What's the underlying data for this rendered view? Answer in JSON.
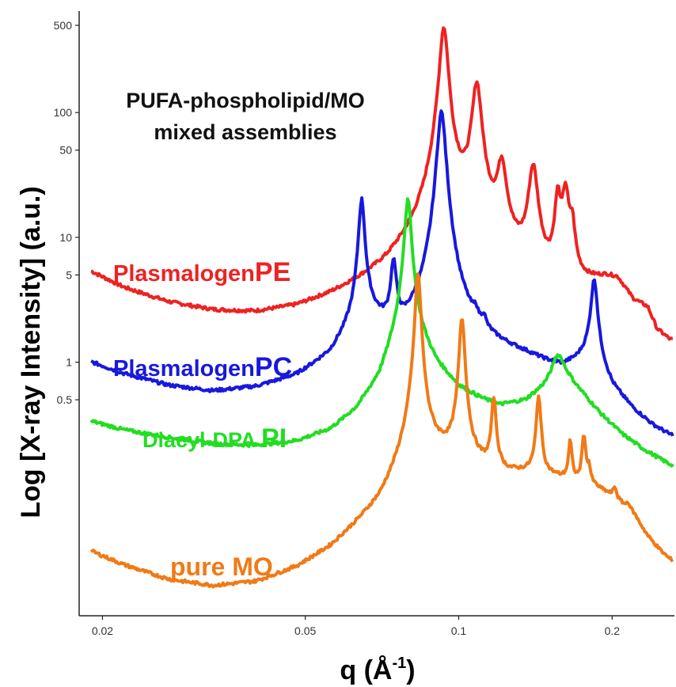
{
  "chart_data": {
    "type": "line",
    "title": "",
    "annotation": [
      "PUFA-phospholipid/MO",
      "mixed assemblies"
    ],
    "xlabel": "q (Å-1)",
    "xlabel_parts": {
      "main": "q (Å",
      "sup": "-1",
      "close": ")"
    },
    "ylabel": "Log [X-ray Intensity] (a.u.)",
    "x_scale": "log",
    "y_scale": "log",
    "xlim": [
      0.018,
      0.265
    ],
    "ylim": [
      0.0093,
      650
    ],
    "x_ticks": [
      {
        "value": 0.02,
        "label": "0.02"
      },
      {
        "value": 0.05,
        "label": "0.05"
      },
      {
        "value": 0.1,
        "label": "0.1"
      },
      {
        "value": 0.2,
        "label": "0.2"
      }
    ],
    "y_ticks": [
      {
        "value": 500,
        "label": "500"
      },
      {
        "value": 100,
        "label": "100"
      },
      {
        "value": 50,
        "label": "50"
      },
      {
        "value": 10,
        "label": "10"
      },
      {
        "value": 5,
        "label": "5"
      },
      {
        "value": 1,
        "label": "1"
      },
      {
        "value": 0.5,
        "label": "0.5"
      }
    ],
    "grid": false,
    "series": [
      {
        "key": "pe",
        "label_normal": "Plasmalogen",
        "label_bold": "PE",
        "color": "#ee2222",
        "baseline": [
          [
            0.019,
            5.0
          ],
          [
            0.022,
            3.6
          ],
          [
            0.027,
            2.6
          ],
          [
            0.033,
            2.1
          ],
          [
            0.04,
            1.9
          ],
          [
            0.048,
            2.0
          ],
          [
            0.056,
            2.4
          ],
          [
            0.064,
            3.0
          ],
          [
            0.072,
            3.8
          ],
          [
            0.08,
            5.5
          ],
          [
            0.086,
            8.0
          ],
          [
            0.09,
            12
          ],
          [
            0.095,
            13
          ],
          [
            0.1,
            15
          ],
          [
            0.105,
            13
          ],
          [
            0.113,
            10
          ],
          [
            0.12,
            9
          ],
          [
            0.125,
            7
          ],
          [
            0.135,
            5
          ],
          [
            0.15,
            3.8
          ],
          [
            0.16,
            3.6
          ],
          [
            0.175,
            4.0
          ],
          [
            0.195,
            4.6
          ],
          [
            0.205,
            4.5
          ],
          [
            0.22,
            3.0
          ],
          [
            0.235,
            2.6
          ],
          [
            0.245,
            1.7
          ],
          [
            0.26,
            1.4
          ]
        ],
        "peaks": [
          {
            "q": 0.0935,
            "h": 470,
            "w": 0.018
          },
          {
            "q": 0.1085,
            "h": 160,
            "w": 0.02
          },
          {
            "q": 0.1215,
            "h": 30,
            "w": 0.02
          },
          {
            "q": 0.14,
            "h": 32,
            "w": 0.02
          },
          {
            "q": 0.1565,
            "h": 17,
            "w": 0.013
          },
          {
            "q": 0.162,
            "h": 20,
            "w": 0.015
          },
          {
            "q": 0.167,
            "h": 8,
            "w": 0.012
          }
        ]
      },
      {
        "key": "pc",
        "label_normal": "Plasmalogen",
        "label_bold": "PC",
        "color": "#1818dd",
        "baseline": [
          [
            0.019,
            0.95
          ],
          [
            0.022,
            0.75
          ],
          [
            0.027,
            0.58
          ],
          [
            0.033,
            0.5
          ],
          [
            0.04,
            0.52
          ],
          [
            0.048,
            0.62
          ],
          [
            0.056,
            0.9
          ],
          [
            0.063,
            1.8
          ],
          [
            0.067,
            2.1
          ],
          [
            0.072,
            1.6
          ],
          [
            0.078,
            1.25
          ],
          [
            0.083,
            1.35
          ],
          [
            0.089,
            1.45
          ],
          [
            0.095,
            1.9
          ],
          [
            0.1,
            1.6
          ],
          [
            0.11,
            1.4
          ],
          [
            0.12,
            1.25
          ],
          [
            0.135,
            1.1
          ],
          [
            0.15,
            0.95
          ],
          [
            0.16,
            0.9
          ],
          [
            0.17,
            1.0
          ],
          [
            0.182,
            1.2
          ],
          [
            0.19,
            0.9
          ],
          [
            0.2,
            0.6
          ],
          [
            0.22,
            0.4
          ],
          [
            0.24,
            0.3
          ],
          [
            0.26,
            0.25
          ]
        ],
        "peaks": [
          {
            "q": 0.0645,
            "h": 18,
            "w": 0.013
          },
          {
            "q": 0.0745,
            "h": 4.5,
            "w": 0.012
          },
          {
            "q": 0.0925,
            "h": 100,
            "w": 0.018
          },
          {
            "q": 0.108,
            "h": 0.4,
            "w": 0.01
          },
          {
            "q": 0.112,
            "h": 0.4,
            "w": 0.01
          },
          {
            "q": 0.1845,
            "h": 3.5,
            "w": 0.014
          }
        ]
      },
      {
        "key": "pi",
        "label_normal": "Diacyl-DPA ",
        "label_bold": "PI",
        "color": "#22dd22",
        "baseline": [
          [
            0.019,
            0.33
          ],
          [
            0.022,
            0.28
          ],
          [
            0.027,
            0.24
          ],
          [
            0.033,
            0.21
          ],
          [
            0.04,
            0.2
          ],
          [
            0.048,
            0.21
          ],
          [
            0.056,
            0.25
          ],
          [
            0.063,
            0.35
          ],
          [
            0.07,
            0.6
          ],
          [
            0.075,
            1.2
          ],
          [
            0.079,
            2.0
          ],
          [
            0.083,
            1.5
          ],
          [
            0.09,
            0.9
          ],
          [
            0.1,
            0.6
          ],
          [
            0.11,
            0.5
          ],
          [
            0.12,
            0.44
          ],
          [
            0.135,
            0.48
          ],
          [
            0.148,
            0.62
          ],
          [
            0.155,
            0.75
          ],
          [
            0.165,
            0.7
          ],
          [
            0.175,
            0.55
          ],
          [
            0.19,
            0.38
          ],
          [
            0.21,
            0.26
          ],
          [
            0.23,
            0.2
          ],
          [
            0.26,
            0.15
          ]
        ],
        "peaks": [
          {
            "q": 0.0795,
            "h": 18,
            "w": 0.015
          },
          {
            "q": 0.157,
            "h": 0.4,
            "w": 0.03
          }
        ]
      },
      {
        "key": "mo",
        "label_normal": "pure MO",
        "label_bold": "",
        "color": "#f07a16",
        "baseline": [
          [
            0.019,
            0.029
          ],
          [
            0.022,
            0.022
          ],
          [
            0.027,
            0.016
          ],
          [
            0.033,
            0.0135
          ],
          [
            0.04,
            0.014
          ],
          [
            0.048,
            0.018
          ],
          [
            0.056,
            0.026
          ],
          [
            0.063,
            0.04
          ],
          [
            0.07,
            0.06
          ],
          [
            0.075,
            0.1
          ],
          [
            0.079,
            0.16
          ],
          [
            0.082,
            0.2
          ],
          [
            0.086,
            0.21
          ],
          [
            0.095,
            0.18
          ],
          [
            0.105,
            0.16
          ],
          [
            0.115,
            0.14
          ],
          [
            0.125,
            0.13
          ],
          [
            0.14,
            0.13
          ],
          [
            0.155,
            0.12
          ],
          [
            0.17,
            0.11
          ],
          [
            0.185,
            0.1
          ],
          [
            0.2,
            0.085
          ],
          [
            0.22,
            0.062
          ],
          [
            0.235,
            0.04
          ],
          [
            0.25,
            0.03
          ],
          [
            0.26,
            0.026
          ]
        ],
        "peaks": [
          {
            "q": 0.0832,
            "h": 5.0,
            "w": 0.012
          },
          {
            "q": 0.1015,
            "h": 2.1,
            "w": 0.012
          },
          {
            "q": 0.1172,
            "h": 0.38,
            "w": 0.01
          },
          {
            "q": 0.1435,
            "h": 0.42,
            "w": 0.01
          },
          {
            "q": 0.1655,
            "h": 0.12,
            "w": 0.008
          },
          {
            "q": 0.176,
            "h": 0.16,
            "w": 0.008
          },
          {
            "q": 0.18,
            "h": 0.04,
            "w": 0.008
          },
          {
            "q": 0.2025,
            "h": 0.018,
            "w": 0.008
          },
          {
            "q": 0.215,
            "h": 0.008,
            "w": 0.008
          }
        ]
      }
    ]
  }
}
